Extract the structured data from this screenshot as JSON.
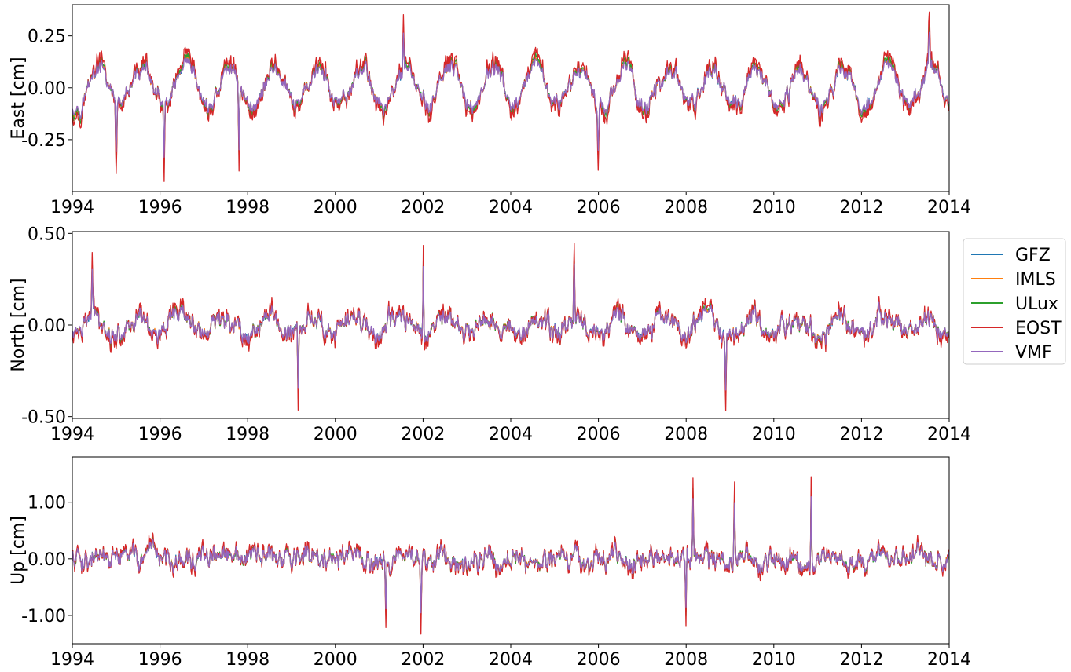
{
  "chart_data": [
    {
      "type": "line",
      "id": "east",
      "ylabel": "East [cm]",
      "xlim": [
        1994,
        2014
      ],
      "ylim": [
        -0.5,
        0.4
      ],
      "xticks": [
        1994,
        1996,
        1998,
        2000,
        2002,
        2004,
        2006,
        2008,
        2010,
        2012,
        2014
      ],
      "xtick_labels": [
        "1994",
        "1996",
        "1998",
        "2000",
        "2002",
        "2004",
        "2006",
        "2008",
        "2010",
        "2012",
        "2014"
      ],
      "yticks": [
        0.25,
        0.0,
        -0.25
      ],
      "ytick_labels": [
        "0.25",
        "0.00",
        "-0.25"
      ],
      "seasonal_amplitude": 0.12,
      "seasonal_peak_phase": 0.6,
      "noise_amplitude": 0.1,
      "extremes": [
        {
          "x": 1995.0,
          "y": -0.42
        },
        {
          "x": 1996.1,
          "y": -0.45
        },
        {
          "x": 1997.8,
          "y": -0.4
        },
        {
          "x": 2001.55,
          "y": 0.35
        },
        {
          "x": 2006.0,
          "y": -0.4
        },
        {
          "x": 2013.55,
          "y": 0.36
        }
      ],
      "series": [
        {
          "name": "GFZ",
          "color": "#1f77b4"
        },
        {
          "name": "IMLS",
          "color": "#ff7f0e"
        },
        {
          "name": "ULux",
          "color": "#2ca02c"
        },
        {
          "name": "EOST",
          "color": "#d62728"
        },
        {
          "name": "VMF",
          "color": "#9467bd"
        }
      ]
    },
    {
      "type": "line",
      "id": "north",
      "ylabel": "North [cm]",
      "xlim": [
        1994,
        2014
      ],
      "ylim": [
        -0.51,
        0.51
      ],
      "xticks": [
        1994,
        1996,
        1998,
        2000,
        2002,
        2004,
        2006,
        2008,
        2010,
        2012,
        2014
      ],
      "xtick_labels": [
        "1994",
        "1996",
        "1998",
        "2000",
        "2002",
        "2004",
        "2006",
        "2008",
        "2010",
        "2012",
        "2014"
      ],
      "yticks": [
        0.5,
        0.0,
        -0.5
      ],
      "ytick_labels": [
        "0.50",
        "0.00",
        "-0.50"
      ],
      "seasonal_amplitude": 0.06,
      "seasonal_peak_phase": 0.5,
      "noise_amplitude": 0.13,
      "extremes": [
        {
          "x": 1994.45,
          "y": 0.4
        },
        {
          "x": 1999.15,
          "y": -0.47
        },
        {
          "x": 2002.0,
          "y": 0.44
        },
        {
          "x": 2005.45,
          "y": 0.44
        },
        {
          "x": 2008.9,
          "y": -0.47
        }
      ],
      "series": [
        {
          "name": "GFZ",
          "color": "#1f77b4"
        },
        {
          "name": "IMLS",
          "color": "#ff7f0e"
        },
        {
          "name": "ULux",
          "color": "#2ca02c"
        },
        {
          "name": "EOST",
          "color": "#d62728"
        },
        {
          "name": "VMF",
          "color": "#9467bd"
        }
      ]
    },
    {
      "type": "line",
      "id": "up",
      "ylabel": "Up [cm]",
      "xlim": [
        1994,
        2014
      ],
      "ylim": [
        -1.5,
        1.8
      ],
      "xticks": [
        1994,
        1996,
        1998,
        2000,
        2002,
        2004,
        2006,
        2008,
        2010,
        2012,
        2014
      ],
      "xtick_labels": [
        "1994",
        "1996",
        "1998",
        "2000",
        "2002",
        "2004",
        "2006",
        "2008",
        "2010",
        "2012",
        "2014"
      ],
      "yticks": [
        1.0,
        0.0,
        -1.0
      ],
      "ytick_labels": [
        "1.00",
        "0.00",
        "-1.00"
      ],
      "seasonal_amplitude": 0.05,
      "seasonal_peak_phase": 0.3,
      "noise_amplitude": 0.42,
      "extremes": [
        {
          "x": 2001.15,
          "y": -1.2
        },
        {
          "x": 2001.95,
          "y": -1.32
        },
        {
          "x": 2008.15,
          "y": 1.45
        },
        {
          "x": 2009.1,
          "y": 1.35
        },
        {
          "x": 2010.85,
          "y": 1.45
        },
        {
          "x": 2008.0,
          "y": -1.18
        }
      ],
      "series": [
        {
          "name": "GFZ",
          "color": "#1f77b4"
        },
        {
          "name": "IMLS",
          "color": "#ff7f0e"
        },
        {
          "name": "ULux",
          "color": "#2ca02c"
        },
        {
          "name": "EOST",
          "color": "#d62728"
        },
        {
          "name": "VMF",
          "color": "#9467bd"
        }
      ]
    }
  ],
  "legend": {
    "placement": "right of middle panel",
    "entries": [
      {
        "label": "GFZ",
        "color": "#1f77b4"
      },
      {
        "label": "IMLS",
        "color": "#ff7f0e"
      },
      {
        "label": "ULux",
        "color": "#2ca02c"
      },
      {
        "label": "EOST",
        "color": "#d62728"
      },
      {
        "label": "VMF",
        "color": "#9467bd"
      }
    ]
  }
}
